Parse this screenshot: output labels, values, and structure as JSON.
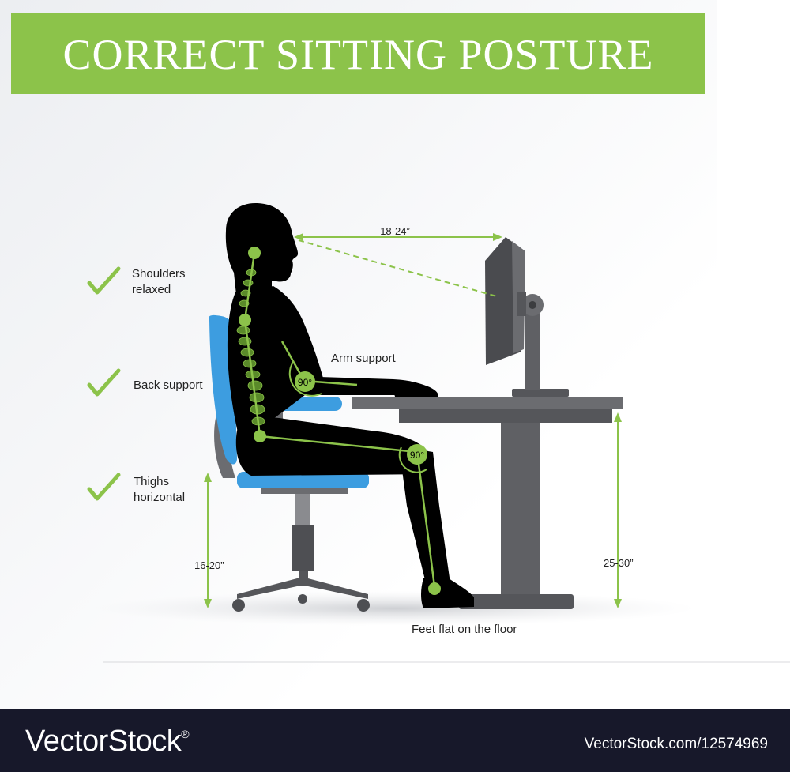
{
  "title": "CORRECT SITTING POSTURE",
  "checklist": [
    {
      "icon": "checkmark-icon",
      "line1": "Shoulders",
      "line2": "relaxed"
    },
    {
      "icon": "checkmark-icon",
      "line1": "Back support",
      "line2": ""
    },
    {
      "icon": "checkmark-icon",
      "line1": "Thighs",
      "line2": "horizontal"
    }
  ],
  "labels": {
    "eye_distance": "18-24”",
    "arm_support": "Arm support",
    "elbow_angle": "90°",
    "knee_angle": "90°",
    "seat_height": "16-20”",
    "desk_height": "25-30”",
    "feet": "Feet flat on  the floor"
  },
  "footer": {
    "brand": "VectorStock",
    "brand_mark": "®",
    "image_id": "VectorStock.com/12574969"
  },
  "colors": {
    "banner": "#8cc34a",
    "accent": "#8cc34a",
    "chair": "#3d9de0",
    "desk": "#5f6064",
    "silhouette": "#000000",
    "footer": "#17182a"
  }
}
